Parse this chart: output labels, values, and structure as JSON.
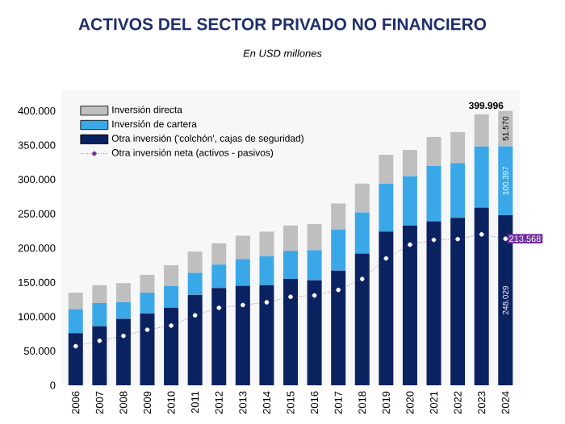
{
  "chart_data": {
    "type": "bar",
    "stacked": true,
    "title": "ACTIVOS DEL SECTOR PRIVADO NO FINANCIERO",
    "subtitle": "En USD millones",
    "categories": [
      "2006",
      "2007",
      "2008",
      "2009",
      "2010",
      "2011",
      "2012",
      "2013",
      "2014",
      "2015",
      "2016",
      "2017",
      "2018",
      "2019",
      "2020",
      "2021",
      "2022",
      "2023",
      "2024"
    ],
    "series": [
      {
        "name": "Otra inversión ('colchón', cajas de seguridad)",
        "color": "#0b2260",
        "values": [
          76000,
          86000,
          97000,
          105000,
          113000,
          132000,
          142000,
          145000,
          146000,
          155000,
          153000,
          167000,
          192000,
          224000,
          233000,
          239000,
          244000,
          259000,
          248029
        ],
        "value_labels": [
          null,
          null,
          null,
          null,
          null,
          null,
          null,
          null,
          null,
          null,
          null,
          null,
          null,
          null,
          null,
          null,
          null,
          null,
          "248.029"
        ]
      },
      {
        "name": "Inversión de cartera",
        "color": "#3aa8e8",
        "values": [
          35000,
          34000,
          24000,
          30000,
          32000,
          32000,
          34000,
          39000,
          42000,
          41000,
          44000,
          60000,
          60000,
          70000,
          72000,
          81000,
          80000,
          89000,
          100397
        ],
        "value_labels": [
          null,
          null,
          null,
          null,
          null,
          null,
          null,
          null,
          null,
          null,
          null,
          null,
          null,
          null,
          null,
          null,
          null,
          null,
          "100.397"
        ]
      },
      {
        "name": "Inversión directa",
        "color": "#bfbfbf",
        "values": [
          24000,
          26000,
          28000,
          26000,
          30000,
          31000,
          31000,
          34000,
          36000,
          37000,
          38000,
          38000,
          42000,
          42000,
          38000,
          42000,
          45000,
          47000,
          51570
        ],
        "value_labels": [
          null,
          null,
          null,
          null,
          null,
          null,
          null,
          null,
          null,
          null,
          null,
          null,
          null,
          null,
          null,
          null,
          null,
          null,
          "51.570"
        ]
      },
      {
        "name": "Otra inversión neta (activos - pasivos)",
        "type": "line",
        "color": "#7030a0",
        "marker": "circle",
        "line_style": "dotted",
        "values": [
          57000,
          65000,
          72000,
          81000,
          87000,
          102000,
          113000,
          117000,
          121000,
          129000,
          131000,
          139000,
          155000,
          185000,
          205000,
          212000,
          213000,
          220000,
          213568
        ],
        "value_labels": [
          null,
          null,
          null,
          null,
          null,
          null,
          null,
          null,
          null,
          null,
          null,
          null,
          null,
          null,
          null,
          null,
          null,
          null,
          "213.568"
        ]
      }
    ],
    "totals": [
      null,
      null,
      null,
      null,
      null,
      null,
      null,
      null,
      null,
      null,
      null,
      null,
      null,
      null,
      null,
      null,
      null,
      null,
      "399.996"
    ],
    "ylim": [
      0,
      430000
    ],
    "yticks": [
      {
        "value": 0,
        "label": "0"
      },
      {
        "value": 50000,
        "label": "50.000"
      },
      {
        "value": 100000,
        "label": "100.000"
      },
      {
        "value": 150000,
        "label": "150.000"
      },
      {
        "value": 200000,
        "label": "200.000"
      },
      {
        "value": 250000,
        "label": "250.000"
      },
      {
        "value": 300000,
        "label": "300.000"
      },
      {
        "value": 350000,
        "label": "350.000"
      },
      {
        "value": 400000,
        "label": "400.000"
      }
    ],
    "legend": "top left",
    "grid": false
  }
}
